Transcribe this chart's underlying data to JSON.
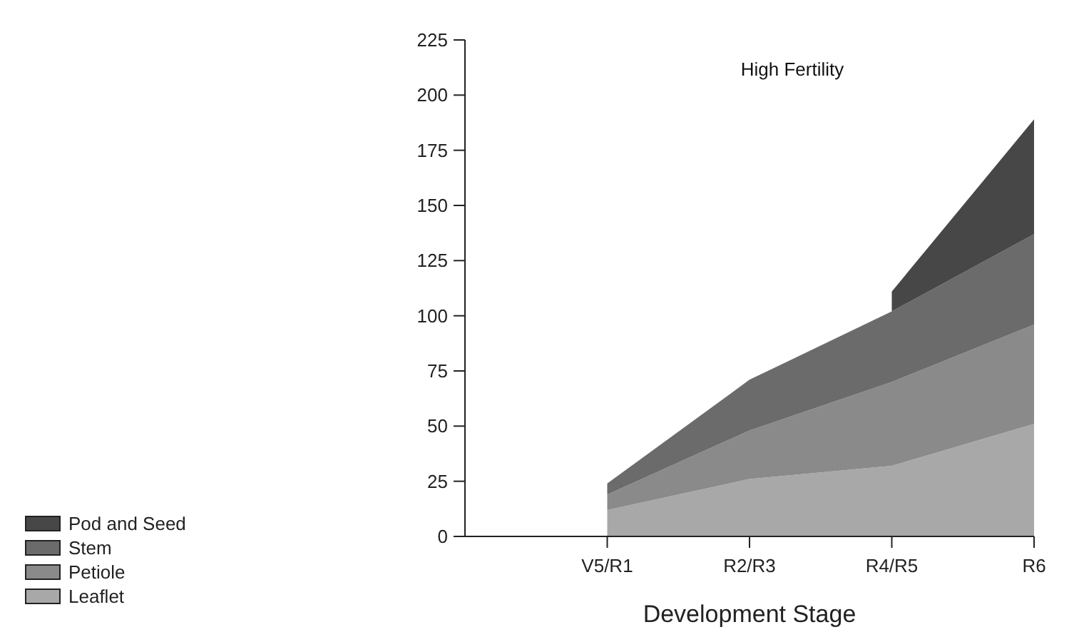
{
  "chart_data": {
    "type": "area",
    "stacked": true,
    "title": "High Fertility",
    "xlabel": "Development Stage",
    "categories": [
      null,
      "V5/R1",
      "R2/R3",
      "R4/R5",
      "R6"
    ],
    "series": [
      {
        "name": "Leaflet",
        "color": "#a8a8a8",
        "values": [
          null,
          12,
          26,
          32,
          51
        ]
      },
      {
        "name": "Petiole",
        "color": "#8a8a8a",
        "values": [
          null,
          7,
          22,
          38,
          45
        ]
      },
      {
        "name": "Stem",
        "color": "#6b6b6b",
        "values": [
          null,
          5,
          23,
          32,
          41
        ]
      },
      {
        "name": "Pod and Seed",
        "color": "#474747",
        "values": [
          null,
          null,
          null,
          9,
          52
        ]
      }
    ],
    "ylim": [
      0,
      225
    ],
    "yticks": [
      0,
      25,
      50,
      75,
      100,
      125,
      150,
      175,
      200,
      225
    ],
    "grid": false,
    "legend": "bottom left"
  }
}
